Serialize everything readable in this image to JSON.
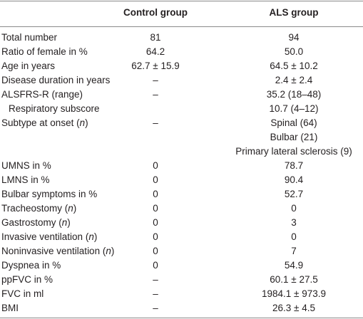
{
  "table": {
    "header": [
      "Control group",
      "ALS group"
    ],
    "rows": [
      {
        "label": "Total number",
        "cells": [
          "81",
          "94"
        ]
      },
      {
        "label": "Ratio of female in %",
        "cells": [
          "64.2",
          "50.0"
        ]
      },
      {
        "label": "Age in years",
        "cells": [
          "62.7 ± 15.9",
          "64.5 ± 10.2"
        ]
      },
      {
        "label": "Disease duration in years",
        "cells": [
          "–",
          "2.4 ± 2.4"
        ]
      },
      {
        "label": "ALSFRS-R (range)",
        "cells": [
          "–",
          "35.2 (18–48)"
        ]
      },
      {
        "label": "Respiratory subscore",
        "indent": true,
        "cells": [
          null,
          "10.7 (4–12)"
        ]
      },
      {
        "label": [
          "Subtype at onset (",
          "n",
          ")"
        ],
        "cells": [
          "–",
          "Spinal (64)"
        ]
      },
      {
        "label": null,
        "cells": [
          null,
          "Bulbar (21)"
        ]
      },
      {
        "label": null,
        "cells": [
          null,
          "Primary lateral sclerosis (9)"
        ]
      },
      {
        "label": "UMNS in %",
        "cells": [
          "0",
          "78.7"
        ]
      },
      {
        "label": "LMNS in %",
        "cells": [
          "0",
          "90.4"
        ]
      },
      {
        "label": "Bulbar symptoms in %",
        "cells": [
          "0",
          "52.7"
        ]
      },
      {
        "label": [
          "Tracheostomy (",
          "n",
          ")"
        ],
        "cells": [
          "0",
          "0"
        ]
      },
      {
        "label": [
          "Gastrostomy (",
          "n",
          ")"
        ],
        "cells": [
          "0",
          "3"
        ]
      },
      {
        "label": [
          "Invasive ventilation (",
          "n",
          ")"
        ],
        "cells": [
          "0",
          "0"
        ]
      },
      {
        "label": [
          "Noninvasive ventilation (",
          "n",
          ")"
        ],
        "cells": [
          "0",
          "7"
        ]
      },
      {
        "label": "Dyspnea in %",
        "cells": [
          "0",
          "54.9"
        ]
      },
      {
        "label": "ppFVC in %",
        "cells": [
          "–",
          "60.1 ± 27.5"
        ]
      },
      {
        "label": "FVC in ml",
        "cells": [
          "–",
          "1984.1 ± 973.9"
        ]
      },
      {
        "label": "BMI",
        "cells": [
          "–",
          "26.3 ± 4.5"
        ]
      }
    ]
  }
}
